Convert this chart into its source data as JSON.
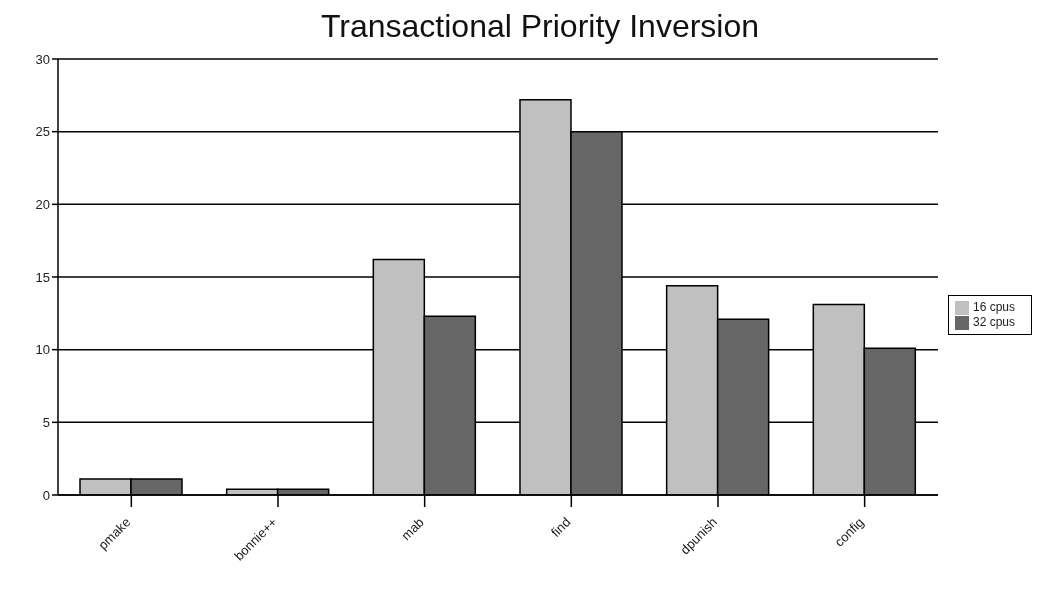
{
  "chart_data": {
    "type": "bar",
    "title": "Transactional Priority Inversion",
    "categories": [
      "pmake",
      "bonnie++",
      "mab",
      "find",
      "dpunish",
      "config"
    ],
    "series": [
      {
        "name": "16 cpus",
        "color": "#c0c0c0",
        "values": [
          1.1,
          0.4,
          16.2,
          27.2,
          14.4,
          13.1
        ]
      },
      {
        "name": "32 cpus",
        "color": "#666666",
        "values": [
          1.1,
          0.4,
          12.3,
          25.0,
          12.1,
          10.1
        ]
      }
    ],
    "ylim": [
      0,
      30
    ],
    "yticks": [
      0,
      5,
      10,
      15,
      20,
      25,
      30
    ],
    "grid": "y",
    "legend": "right"
  }
}
